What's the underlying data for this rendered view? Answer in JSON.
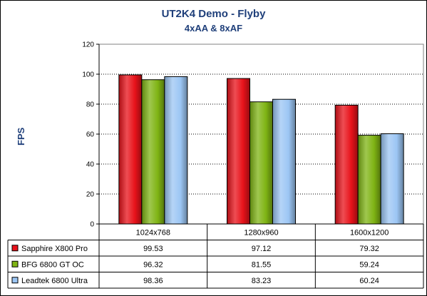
{
  "chart_data": {
    "type": "bar",
    "title": "UT2K4 Demo - Flyby",
    "subtitle": "4xAA & 8xAF",
    "xlabel": "",
    "ylabel": "FPS",
    "ylim": [
      0,
      120
    ],
    "yticks": [
      0,
      20,
      40,
      60,
      80,
      100,
      120
    ],
    "grid": true,
    "categories": [
      "1024x768",
      "1280x960",
      "1600x1200"
    ],
    "series": [
      {
        "name": "Sapphire X800 Pro",
        "color": "#e8121a",
        "values": [
          99.53,
          97.12,
          79.32
        ],
        "labels": [
          "99.53",
          "97.12",
          "79.32"
        ]
      },
      {
        "name": "BFG 6800 GT OC",
        "color": "#7fb414",
        "values": [
          96.32,
          81.55,
          59.24
        ],
        "labels": [
          "96.32",
          "81.55",
          "59.24"
        ]
      },
      {
        "name": "Leadtek 6800 Ultra",
        "color": "#9cc6f4",
        "values": [
          98.36,
          83.23,
          60.24
        ],
        "labels": [
          "98.36",
          "83.23",
          "60.24"
        ]
      }
    ],
    "legend": "data-table"
  }
}
